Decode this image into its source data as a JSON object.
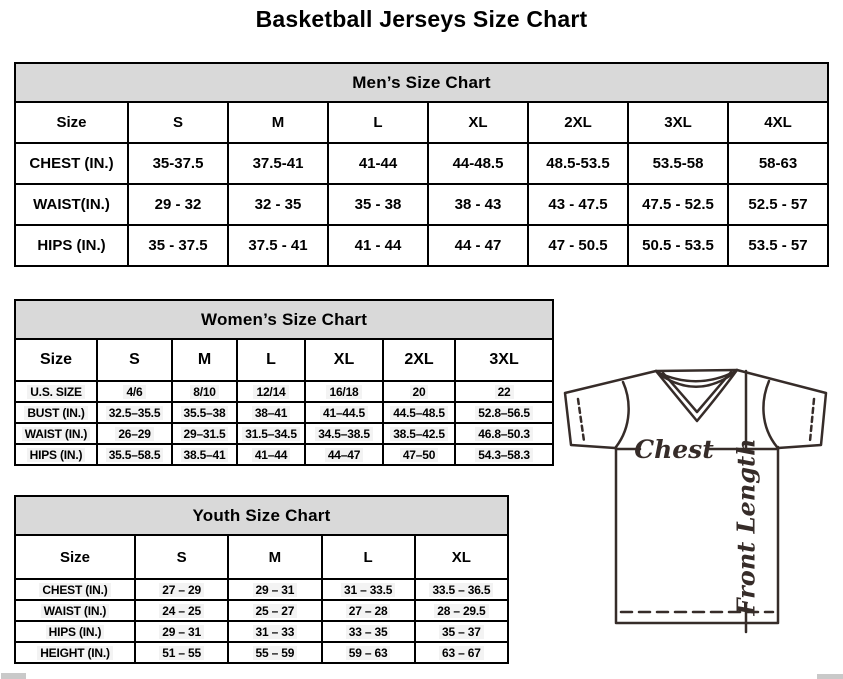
{
  "page_title": "Basketball Jerseys Size Chart",
  "colors": {
    "table_header_bg": "#d9d9d9",
    "table_border": "#000000",
    "diagram_line": "#362c29",
    "value_highlight": "#f3f3f3",
    "scrollbar": "#c9c9c9"
  },
  "mens_chart": {
    "title": "Men’s Size Chart",
    "columns": [
      "Size",
      "S",
      "M",
      "L",
      "XL",
      "2XL",
      "3XL",
      "4XL"
    ],
    "rows": [
      {
        "label": "CHEST (IN.)",
        "values": [
          "35-37.5",
          "37.5-41",
          "41-44",
          "44-48.5",
          "48.5-53.5",
          "53.5-58",
          "58-63"
        ]
      },
      {
        "label": "WAIST(IN.)",
        "values": [
          "29 - 32",
          "32 - 35",
          "35 - 38",
          "38 - 43",
          "43 - 47.5",
          "47.5 - 52.5",
          "52.5 - 57"
        ]
      },
      {
        "label": "HIPS (IN.)",
        "values": [
          "35 - 37.5",
          "37.5 - 41",
          "41 - 44",
          "44 - 47",
          "47 - 50.5",
          "50.5 - 53.5",
          "53.5 - 57"
        ]
      }
    ]
  },
  "womens_chart": {
    "title": "Women’s Size Chart",
    "columns": [
      "Size",
      "S",
      "M",
      "L",
      "XL",
      "2XL",
      "3XL"
    ],
    "rows": [
      {
        "label": "U.S. SIZE",
        "values": [
          "4/6",
          "8/10",
          "12/14",
          "16/18",
          "20",
          "22"
        ]
      },
      {
        "label": "BUST (IN.)",
        "values": [
          "32.5–35.5",
          "35.5–38",
          "38–41",
          "41–44.5",
          "44.5–48.5",
          "52.8–56.5"
        ]
      },
      {
        "label": "WAIST (IN.)",
        "values": [
          "26–29",
          "29–31.5",
          "31.5–34.5",
          "34.5–38.5",
          "38.5–42.5",
          "46.8–50.3"
        ]
      },
      {
        "label": "HIPS (IN.)",
        "values": [
          "35.5–58.5",
          "38.5–41",
          "41–44",
          "44–47",
          "47–50",
          "54.3–58.3"
        ]
      }
    ]
  },
  "youth_chart": {
    "title": "Youth Size Chart",
    "columns": [
      "Size",
      "S",
      "M",
      "L",
      "XL"
    ],
    "rows": [
      {
        "label": "CHEST (IN.)",
        "values": [
          "27 – 29",
          "29 – 31",
          "31 – 33.5",
          "33.5 – 36.5"
        ]
      },
      {
        "label": "WAIST (IN.)",
        "values": [
          "24 – 25",
          "25 – 27",
          "27 – 28",
          "28 – 29.5"
        ]
      },
      {
        "label": "HIPS (IN.)",
        "values": [
          "29 – 31",
          "31 – 33",
          "33 – 35",
          "35 – 37"
        ]
      },
      {
        "label": "HEIGHT (IN.)",
        "values": [
          "51 – 55",
          "55 – 59",
          "59 – 63",
          "63 – 67"
        ]
      }
    ]
  },
  "diagram": {
    "chest_label": "Chest",
    "front_length_label": "Front Length"
  }
}
